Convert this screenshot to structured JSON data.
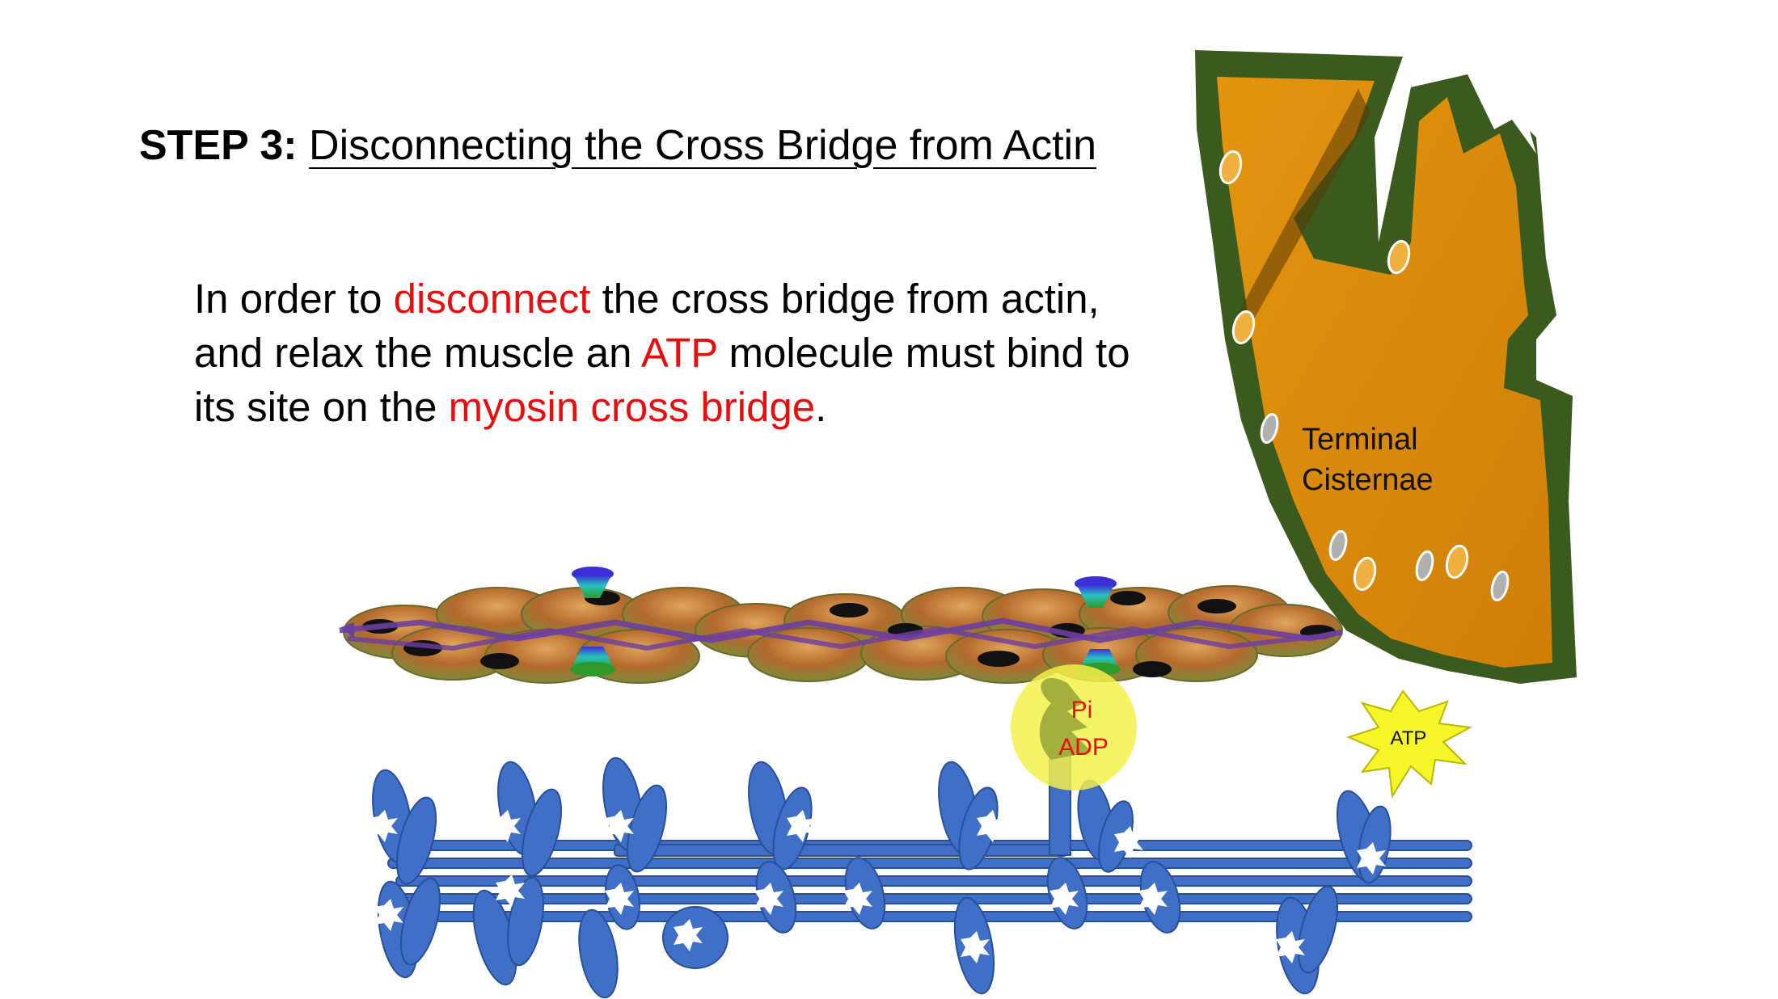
{
  "title": {
    "step": "STEP 3:",
    "text": "Disconnecting the Cross Bridge from Actin"
  },
  "body": {
    "lead": " In order to ",
    "hl1": "disconnect",
    "seg2": " the cross bridge from actin,   and relax the muscle an ",
    "hl2": "ATP",
    "seg3": " molecule must bind to its site on the ",
    "hl3": "myosin   cross bridge",
    "seg4": "."
  },
  "diagram": {
    "sr_label_line1": "Terminal",
    "sr_label_line2": "Cisternae",
    "pi_label": "Pi",
    "adp_label": "ADP",
    "atp_label": "ATP"
  },
  "colors": {
    "highlight_text": "#e60f0f",
    "cisternae_fill": "#d98a0b",
    "cisternae_border": "#3b5a1e",
    "myosin_blue": "#3f6fc6",
    "actin_bead": "#b4692d",
    "tropomyosin": "#6b3fa0",
    "binding_glow": "#f2f04a",
    "atp_star": "#f5f52a"
  }
}
